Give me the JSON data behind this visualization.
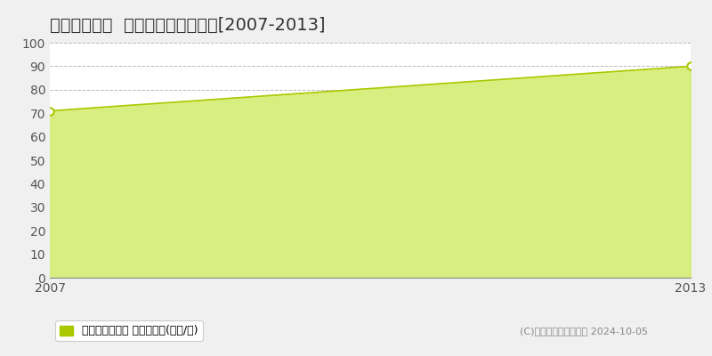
{
  "title": "東大和市新堀  マンション価格推移[2007-2013]",
  "x_values": [
    2007,
    2013
  ],
  "y_values": [
    71,
    90
  ],
  "y_min": 0,
  "y_max": 100,
  "x_min": 2007,
  "x_max": 2013,
  "line_color": "#aac800",
  "fill_color": "#d8ee80",
  "fill_alpha": 1.0,
  "background_color": "#f0f0f0",
  "plot_bg_color": "#ffffff",
  "grid_color": "#bbbbbb",
  "title_fontsize": 14,
  "tick_fontsize": 10,
  "legend_label": "マンション価格 平均坪単価(万円/坪)",
  "legend_square_color": "#aac800",
  "copyright_text": "(C)土地価格ドットコム 2024-10-05",
  "ytick_interval": 10,
  "xtick_labels": [
    "2007",
    "2013"
  ]
}
